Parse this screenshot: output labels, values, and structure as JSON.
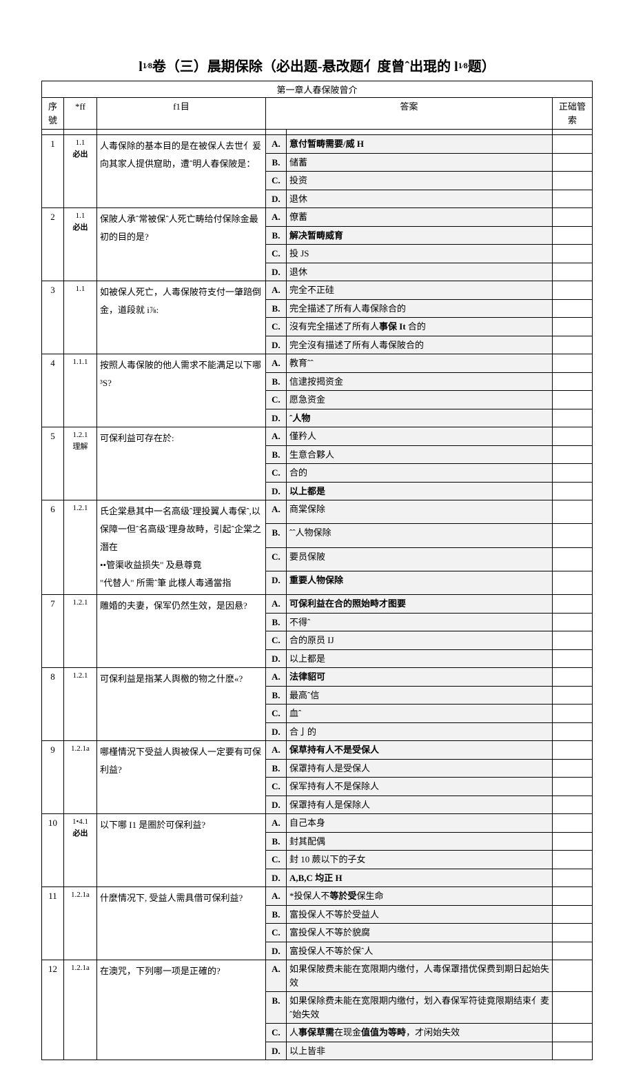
{
  "title_prefix": "l",
  "title_frac_top": "1",
  "title_frac_bot": "8",
  "title_mid": "卷（三）晨期保除（必出题-悬改题亻度曾ˆ出琨的 l",
  "title_frac_top2": "1",
  "title_frac_bot2": "8",
  "title_suffix": "题）",
  "chapter": "第一章人春保陂曾介",
  "headers": {
    "seq": "序號",
    "ref": "*ff",
    "q": "f1目",
    "ans": "答案",
    "idx": "正础管索"
  },
  "must_label": "必出",
  "understand_label": "理解",
  "rows": [
    {
      "seq": "1",
      "ref_top": "1.1",
      "must": true,
      "q": "人毒保除的基本目的是在被保人去世亻爰向其家人提供窟助，遭ˆ明人春保陂是：",
      "opts": [
        {
          "l": "A.",
          "t": "意付暂畴需要/威 H",
          "bold": true
        },
        {
          "l": "B.",
          "t": "储蓄"
        },
        {
          "l": "C.",
          "t": "投资"
        },
        {
          "l": "D.",
          "t": "退休"
        }
      ]
    },
    {
      "seq": "2",
      "ref_top": "1.1",
      "must": true,
      "q": "保陂人承ˆ常被保ˆ人死亡畴给付保除金最初的目的是?",
      "opts": [
        {
          "l": "A.",
          "t": "僚蓄"
        },
        {
          "l": "B.",
          "t": "解决暂畴威育",
          "bold": true
        },
        {
          "l": "C.",
          "t": "投 JS"
        },
        {
          "l": "D.",
          "t": "退休"
        }
      ]
    },
    {
      "seq": "3",
      "ref_top": "1.1",
      "q": "如被保人死亡，人毒保陂符支付一肇踣倒金，道段就 i⅞:",
      "opts": [
        {
          "l": "A.",
          "t": "完全不正硅"
        },
        {
          "l": "B.",
          "t": "完全描述了所有人毒保除合的"
        },
        {
          "l": "C.",
          "t": "沒有完全描述了所有人<b>事保 It</b> 合的"
        },
        {
          "l": "D.",
          "t": "完全沒有描述了所有人毒保陂合的"
        }
      ]
    },
    {
      "seq": "4",
      "ref_top": "1.1.1",
      "q": "按照人毒保陂的他人需求不能满足以下哪 ³S?",
      "opts": [
        {
          "l": "A.",
          "t": "教育ˆˆ"
        },
        {
          "l": "B.",
          "t": "信逮按揭资金"
        },
        {
          "l": "C.",
          "t": "愿急资金"
        },
        {
          "l": "D.",
          "t": "ˆ人物",
          "bold": true
        }
      ]
    },
    {
      "seq": "5",
      "ref_top": "1.2.1",
      "ref_extra": "理解",
      "q": "可保利益可存在於:",
      "opts": [
        {
          "l": "A.",
          "t": "僅矜人"
        },
        {
          "l": "B.",
          "t": "生意合夥人"
        },
        {
          "l": "C.",
          "t": "合的"
        },
        {
          "l": "D.",
          "t": "以上都是",
          "bold": true
        }
      ]
    },
    {
      "seq": "6",
      "ref_top": "1.2.1",
      "q": "氏企棠悬其中一名高级ˆ理投翼人毒保ˆ,以保障一但ˆ名高级ˆ理身故畤，引起ˆ企棠之潛在\n••管渠收益损失\" 及悬尊竟\n\"代替人\" 所需ˆ筆 此様人毒通當指",
      "opts": [
        {
          "l": "A.",
          "t": "商棠保除"
        },
        {
          "l": "B.",
          "t": "ˆˆ人物保除"
        },
        {
          "l": "C.",
          "t": "要员保陂"
        },
        {
          "l": "D.",
          "t": "重要人物保除",
          "bold": true
        }
      ]
    },
    {
      "seq": "7",
      "ref_top": "1.2.1",
      "q": "雕婚的夫妻，保军仍然生效，是因悬?",
      "opts": [
        {
          "l": "A.",
          "t": "可保利益在合的照始畤才图要",
          "bold": true
        },
        {
          "l": "B.",
          "t": "不得ˆ"
        },
        {
          "l": "C.",
          "t": "合的原员 IJ"
        },
        {
          "l": "D.",
          "t": "以上都是"
        }
      ]
    },
    {
      "seq": "8",
      "ref_top": "1.2.1",
      "q": "可保利益是指某人舆檄的物之什麽«?",
      "opts": [
        {
          "l": "A.",
          "t": "法律貂可",
          "bold": true
        },
        {
          "l": "B.",
          "t": "最高ˆ信"
        },
        {
          "l": "C.",
          "t": "血ˆ"
        },
        {
          "l": "D.",
          "t": "合亅的"
        }
      ]
    },
    {
      "seq": "9",
      "ref_top": "1.2.1a",
      "q": "哪槿情況下受益人舆被保人一定要有可保利益?",
      "opts": [
        {
          "l": "A.",
          "t": "保草持有人不是受保人",
          "bold": true
        },
        {
          "l": "B.",
          "t": "保罩持有人是受保人"
        },
        {
          "l": "C.",
          "t": "保军持有人不是保除人"
        },
        {
          "l": "D.",
          "t": "保罩持有人是保除人"
        }
      ]
    },
    {
      "seq": "10",
      "ref_top": "1•4.1",
      "must": true,
      "q": "以下哪 I1 是圈於可保利益?",
      "opts": [
        {
          "l": "A.",
          "t": "自己本身"
        },
        {
          "l": "B.",
          "t": "封其配偶"
        },
        {
          "l": "C.",
          "t": "封 10 蕨以下的子女"
        },
        {
          "l": "D.",
          "t": "A,B,C 均正 H",
          "bold": true
        }
      ]
    },
    {
      "seq": "11",
      "ref_top": "1.2.1a",
      "q": "什麼情况下, 受益人需具借可保利益?",
      "opts": [
        {
          "l": "A.",
          "t": "*投保人不<b>等於受</b>保生命"
        },
        {
          "l": "B.",
          "t": "富投保人不等於受益人"
        },
        {
          "l": "C.",
          "t": "富投保人不等於貌腐"
        },
        {
          "l": "D.",
          "t": "富投保人不等於保ˆ人"
        }
      ]
    },
    {
      "seq": "12",
      "ref_top": "1.2.1a",
      "q": "在澳咒，下列哪一项是正確的?",
      "opts": [
        {
          "l": "A.",
          "t": "如果保陂费未能在宽限期内缴付，人毒保罩措优保费到期日起始失效"
        },
        {
          "l": "B.",
          "t": "如果保除费未能在宽限期内缴付，划入春保军符徒竟限期结束亻麦ˆ始失效"
        },
        {
          "l": "C.",
          "t": "人<b>事保草需</b>在现金<b>值值为等畤</b>，才闲始失效"
        },
        {
          "l": "D.",
          "t": "以上皆非"
        }
      ]
    }
  ]
}
